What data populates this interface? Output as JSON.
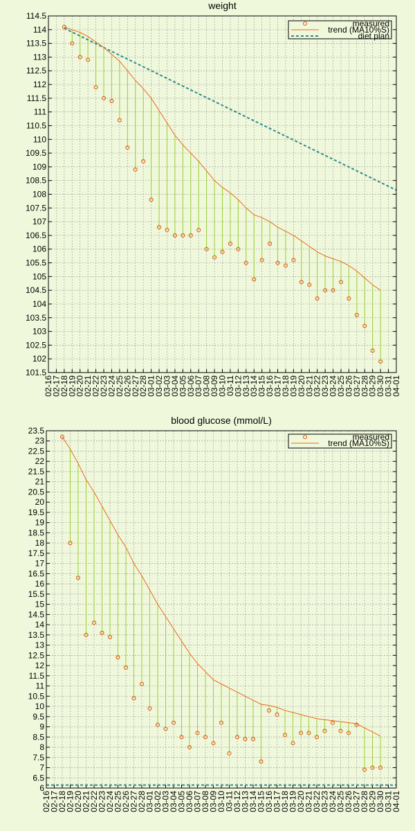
{
  "chart_data": [
    {
      "type": "scatter",
      "title": "weight",
      "xlabel": "",
      "ylabel": "",
      "categories": [
        "02-16",
        "02-17",
        "02-18",
        "02-19",
        "02-20",
        "02-21",
        "02-22",
        "02-23",
        "02-24",
        "02-25",
        "02-26",
        "02-27",
        "02-28",
        "03-01",
        "03-02",
        "03-03",
        "03-04",
        "03-05",
        "03-06",
        "03-07",
        "03-08",
        "03-09",
        "03-10",
        "03-11",
        "03-12",
        "03-13",
        "03-14",
        "03-15",
        "03-16",
        "03-17",
        "03-18",
        "03-19",
        "03-20",
        "03-21",
        "03-22",
        "03-23",
        "03-24",
        "03-25",
        "03-26",
        "03-27",
        "03-28",
        "03-29",
        "03-30",
        "03-31",
        "04-01"
      ],
      "ylim": [
        101.5,
        114.5
      ],
      "yticks": [
        "101.5",
        "102",
        "102.5",
        "103",
        "103.5",
        "104",
        "104.5",
        "105",
        "105.5",
        "106",
        "106.5",
        "107",
        "107.5",
        "108",
        "108.5",
        "109",
        "109.5",
        "110",
        "110.5",
        "111",
        "111.5",
        "112",
        "112.5",
        "113",
        "113.5",
        "114",
        "114.5"
      ],
      "grid": true,
      "legend_position": "top-right",
      "series": [
        {
          "name": "measured",
          "style": "points",
          "color": "#e05a0a",
          "x": [
            "02-18",
            "02-19",
            "02-20",
            "02-21",
            "02-22",
            "02-23",
            "02-24",
            "02-25",
            "02-26",
            "02-27",
            "02-28",
            "03-01",
            "03-02",
            "03-03",
            "03-04",
            "03-05",
            "03-06",
            "03-07",
            "03-08",
            "03-09",
            "03-10",
            "03-11",
            "03-12",
            "03-13",
            "03-14",
            "03-15",
            "03-16",
            "03-17",
            "03-18",
            "03-19",
            "03-20",
            "03-21",
            "03-22",
            "03-23",
            "03-24",
            "03-25",
            "03-26",
            "03-27",
            "03-28",
            "03-29",
            "03-30"
          ],
          "values": [
            114.1,
            113.5,
            113.0,
            112.9,
            111.9,
            111.5,
            111.4,
            110.7,
            109.7,
            108.9,
            109.2,
            107.8,
            106.8,
            106.7,
            106.5,
            106.5,
            106.5,
            106.7,
            106.0,
            105.7,
            105.9,
            106.2,
            106.0,
            105.5,
            104.9,
            105.6,
            106.2,
            105.5,
            105.4,
            105.6,
            104.8,
            104.7,
            104.2,
            104.5,
            104.5,
            104.8,
            104.2,
            103.6,
            103.2,
            102.3,
            101.9
          ]
        },
        {
          "name": "trend (MA10%S)",
          "style": "line",
          "color": "#e86a1a",
          "x": [
            "02-18",
            "02-19",
            "02-20",
            "02-21",
            "02-22",
            "02-23",
            "02-24",
            "02-25",
            "02-26",
            "02-27",
            "02-28",
            "03-01",
            "03-02",
            "03-03",
            "03-04",
            "03-05",
            "03-06",
            "03-07",
            "03-08",
            "03-09",
            "03-10",
            "03-11",
            "03-12",
            "03-13",
            "03-14",
            "03-15",
            "03-16",
            "03-17",
            "03-18",
            "03-19",
            "03-20",
            "03-21",
            "03-22",
            "03-23",
            "03-24",
            "03-25",
            "03-26",
            "03-27",
            "03-28",
            "03-29",
            "03-30"
          ],
          "values": [
            114.1,
            114.0,
            113.9,
            113.75,
            113.55,
            113.35,
            113.1,
            112.85,
            112.5,
            112.15,
            111.85,
            111.5,
            111.05,
            110.6,
            110.15,
            109.8,
            109.5,
            109.2,
            108.85,
            108.5,
            108.25,
            108.05,
            107.8,
            107.5,
            107.25,
            107.15,
            107.0,
            106.8,
            106.65,
            106.5,
            106.3,
            106.1,
            105.9,
            105.75,
            105.65,
            105.55,
            105.4,
            105.2,
            104.95,
            104.7,
            104.5
          ]
        },
        {
          "name": "diet plan",
          "style": "dashed-line",
          "color": "#2a8a8a",
          "x": [
            "02-18",
            "04-01"
          ],
          "values": [
            114.05,
            108.15
          ]
        }
      ]
    },
    {
      "type": "scatter",
      "title": "blood glucose (mmol/L)",
      "xlabel": "",
      "ylabel": "",
      "categories": [
        "02-16",
        "02-17",
        "02-18",
        "02-19",
        "02-20",
        "02-21",
        "02-22",
        "02-23",
        "02-24",
        "02-25",
        "02-26",
        "02-27",
        "02-28",
        "03-01",
        "03-02",
        "03-03",
        "03-04",
        "03-05",
        "03-06",
        "03-07",
        "03-08",
        "03-09",
        "03-10",
        "03-11",
        "03-12",
        "03-13",
        "03-14",
        "03-15",
        "03-16",
        "03-17",
        "03-18",
        "03-19",
        "03-20",
        "03-21",
        "03-22",
        "03-23",
        "03-24",
        "03-25",
        "03-26",
        "03-27",
        "03-28",
        "03-29",
        "03-30",
        "03-31",
        "04-01"
      ],
      "ylim": [
        6,
        23.5
      ],
      "yticks": [
        "6",
        "6.5",
        "7",
        "7.5",
        "8",
        "8.5",
        "9",
        "9.5",
        "10",
        "10.5",
        "11",
        "11.5",
        "12",
        "12.5",
        "13",
        "13.5",
        "14",
        "14.5",
        "15",
        "15.5",
        "16",
        "16.5",
        "17",
        "17.5",
        "18",
        "18.5",
        "19",
        "19.5",
        "20",
        "20.5",
        "21",
        "21.5",
        "22",
        "22.5",
        "23",
        "23.5"
      ],
      "grid": true,
      "legend_position": "top-right",
      "series": [
        {
          "name": "measured",
          "style": "points",
          "color": "#e05a0a",
          "x": [
            "02-18",
            "02-19",
            "02-20",
            "02-21",
            "02-22",
            "02-23",
            "02-24",
            "02-25",
            "02-26",
            "02-27",
            "02-28",
            "03-01",
            "03-02",
            "03-03",
            "03-04",
            "03-05",
            "03-06",
            "03-07",
            "03-08",
            "03-09",
            "03-10",
            "03-11",
            "03-12",
            "03-13",
            "03-14",
            "03-15",
            "03-16",
            "03-17",
            "03-18",
            "03-19",
            "03-20",
            "03-21",
            "03-22",
            "03-23",
            "03-24",
            "03-25",
            "03-26",
            "03-27",
            "03-28",
            "03-29",
            "03-30"
          ],
          "values": [
            23.2,
            18.0,
            16.3,
            13.5,
            14.1,
            13.6,
            13.4,
            12.4,
            11.9,
            10.4,
            11.1,
            9.9,
            9.1,
            8.9,
            9.2,
            8.5,
            8.0,
            8.7,
            8.5,
            8.2,
            9.2,
            7.7,
            8.5,
            8.4,
            8.4,
            7.3,
            9.8,
            9.6,
            8.6,
            8.2,
            8.7,
            8.7,
            8.5,
            8.8,
            9.2,
            8.8,
            8.7,
            9.1,
            6.9,
            7.0,
            7.0
          ]
        },
        {
          "name": "trend (MA10%S)",
          "style": "line",
          "color": "#e86a1a",
          "x": [
            "02-18",
            "02-19",
            "02-20",
            "02-21",
            "02-22",
            "02-23",
            "02-24",
            "02-25",
            "02-26",
            "02-27",
            "02-28",
            "03-01",
            "03-02",
            "03-03",
            "03-04",
            "03-05",
            "03-06",
            "03-07",
            "03-08",
            "03-09",
            "03-10",
            "03-11",
            "03-12",
            "03-13",
            "03-14",
            "03-15",
            "03-16",
            "03-17",
            "03-18",
            "03-19",
            "03-20",
            "03-21",
            "03-22",
            "03-23",
            "03-24",
            "03-25",
            "03-26",
            "03-27",
            "03-28",
            "03-29",
            "03-30"
          ],
          "values": [
            23.2,
            22.6,
            21.9,
            21.1,
            20.5,
            19.8,
            19.1,
            18.4,
            17.8,
            17.0,
            16.4,
            15.7,
            15.0,
            14.4,
            13.8,
            13.2,
            12.6,
            12.1,
            11.7,
            11.3,
            11.1,
            10.9,
            10.7,
            10.5,
            10.3,
            10.1,
            10.05,
            9.95,
            9.8,
            9.7,
            9.6,
            9.5,
            9.4,
            9.35,
            9.3,
            9.25,
            9.2,
            9.15,
            8.95,
            8.75,
            8.55
          ]
        },
        {
          "name": "",
          "style": "dashed-line",
          "color": "#2a8a8a",
          "x": [
            "02-16",
            "04-01"
          ],
          "values": [
            6.15,
            6.15
          ]
        }
      ]
    }
  ]
}
